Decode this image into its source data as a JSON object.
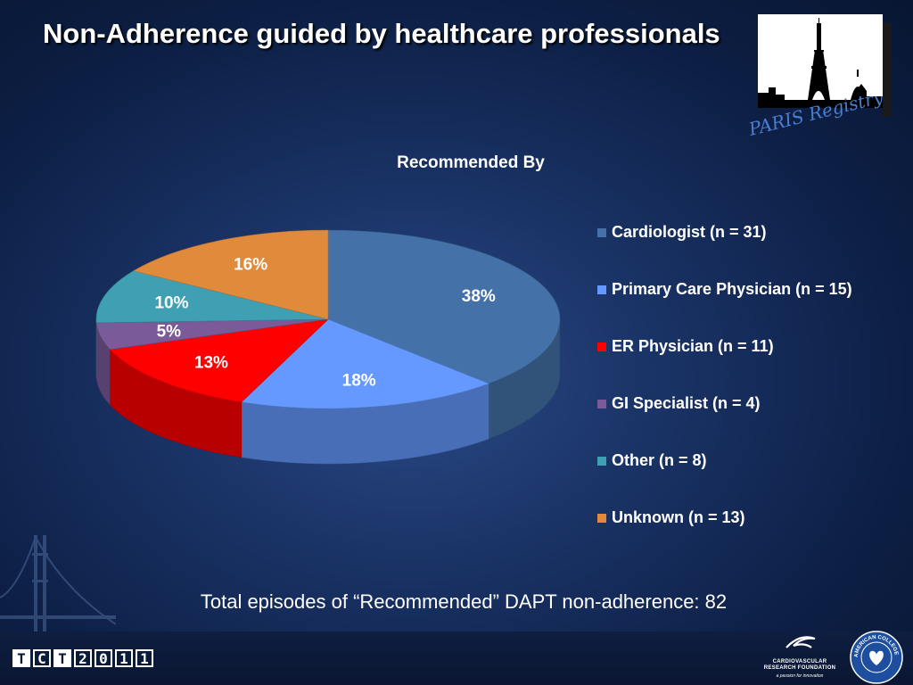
{
  "slide": {
    "title": "Non-Adherence guided by healthcare professionals",
    "logo_text": "PARIS Registry",
    "total_text": "Total episodes of “Recommended” DAPT non-adherence: 82",
    "conference_letters": [
      "T",
      "C",
      "T",
      "2",
      "0",
      "1",
      "1"
    ],
    "crf_name_line1": "CARDIOVASCULAR",
    "crf_name_line2": "RESEARCH FOUNDATION",
    "crf_tagline": "a passion for innovation",
    "acc_seal_text": "AMERICAN COLLEGE of CARDIOLOGY"
  },
  "chart_data": {
    "type": "pie",
    "title": "Recommended By",
    "start_angle_deg": 0,
    "direction": "clockwise",
    "legend_position": "right",
    "slices": [
      {
        "label": "Cardiologist (n = 31)",
        "value": 31,
        "pct_label": "38%",
        "color": "#4472a8"
      },
      {
        "label": "Primary Care Physician (n = 15)",
        "value": 15,
        "pct_label": "18%",
        "color": "#6699ff"
      },
      {
        "label": "ER Physician (n = 11)",
        "value": 11,
        "pct_label": "13%",
        "color": "#ff0000"
      },
      {
        "label": "GI Specialist (n = 4)",
        "value": 4,
        "pct_label": "5%",
        "color": "#7a5a99"
      },
      {
        "label": "Other (n = 8)",
        "value": 8,
        "pct_label": "10%",
        "color": "#3fa0b3"
      },
      {
        "label": "Unknown (n = 13)",
        "value": 13,
        "pct_label": "16%",
        "color": "#e08a3c"
      }
    ]
  }
}
